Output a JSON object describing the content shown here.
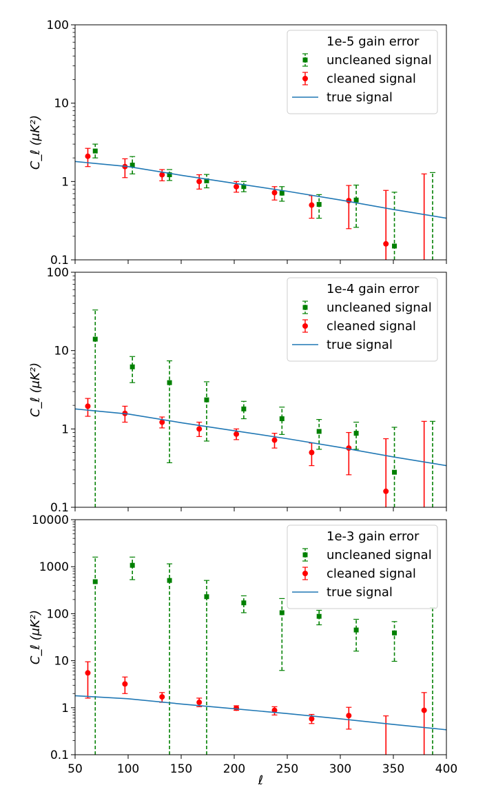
{
  "chart_data": [
    {
      "type": "scatter",
      "panel": "top",
      "ylabel": "C_ℓ (μK²)",
      "yscale": "log",
      "ylim": [
        0.1,
        100
      ],
      "yticks": [
        0.1,
        1,
        10,
        100
      ],
      "ytick_labels": [
        "0.1",
        "1",
        "10",
        "100"
      ],
      "xlim": [
        50,
        400
      ],
      "legend": {
        "placement": "top-right",
        "title": "1e-5 gain error",
        "entries": [
          "uncleaned signal",
          "cleaned signal",
          "true signal"
        ]
      },
      "series": [
        {
          "name": "uncleaned signal",
          "color": "#008000",
          "marker": "square",
          "errorbar_style": "dashed",
          "points": [
            {
              "x": 69,
              "y": 2.45,
              "lo": 2.0,
              "hi": 3.0
            },
            {
              "x": 104,
              "y": 1.62,
              "lo": 1.25,
              "hi": 2.08
            },
            {
              "x": 139,
              "y": 1.22,
              "lo": 1.03,
              "hi": 1.42
            },
            {
              "x": 174,
              "y": 1.02,
              "lo": 0.83,
              "hi": 1.23
            },
            {
              "x": 209,
              "y": 0.86,
              "lo": 0.74,
              "hi": 1.0
            },
            {
              "x": 245,
              "y": 0.71,
              "lo": 0.56,
              "hi": 0.86
            },
            {
              "x": 280,
              "y": 0.51,
              "lo": 0.34,
              "hi": 0.68
            },
            {
              "x": 315,
              "y": 0.58,
              "lo": 0.26,
              "hi": 0.9
            },
            {
              "x": 351,
              "y": 0.15,
              "lo": 0.1,
              "hi": 0.73
            },
            {
              "x": 387,
              "y": null,
              "lo": 0.1,
              "hi": 1.3
            }
          ]
        },
        {
          "name": "cleaned signal",
          "color": "#ff0000",
          "marker": "circle",
          "errorbar_style": "solid",
          "points": [
            {
              "x": 62,
              "y": 2.1,
              "lo": 1.55,
              "hi": 2.65
            },
            {
              "x": 97,
              "y": 1.55,
              "lo": 1.12,
              "hi": 1.95
            },
            {
              "x": 132,
              "y": 1.22,
              "lo": 1.02,
              "hi": 1.42
            },
            {
              "x": 167,
              "y": 1.0,
              "lo": 0.8,
              "hi": 1.22
            },
            {
              "x": 202,
              "y": 0.86,
              "lo": 0.73,
              "hi": 1.0
            },
            {
              "x": 238,
              "y": 0.72,
              "lo": 0.58,
              "hi": 0.86
            },
            {
              "x": 273,
              "y": 0.5,
              "lo": 0.34,
              "hi": 0.66
            },
            {
              "x": 308,
              "y": 0.57,
              "lo": 0.25,
              "hi": 0.89
            },
            {
              "x": 343,
              "y": 0.16,
              "lo": 0.1,
              "hi": 0.77
            },
            {
              "x": 379,
              "y": null,
              "lo": 0.1,
              "hi": 1.25
            }
          ]
        },
        {
          "name": "true signal",
          "color": "#1f77b4",
          "line": true,
          "x": [
            50,
            100,
            150,
            200,
            250,
            300,
            350,
            400
          ],
          "y": [
            1.8,
            1.55,
            1.2,
            0.95,
            0.75,
            0.58,
            0.44,
            0.34
          ]
        }
      ]
    },
    {
      "type": "scatter",
      "panel": "middle",
      "ylabel": "C_ℓ (μK²)",
      "yscale": "log",
      "ylim": [
        0.1,
        100
      ],
      "yticks": [
        0.1,
        1,
        10,
        100
      ],
      "ytick_labels": [
        "0.1",
        "1",
        "10",
        "100"
      ],
      "xlim": [
        50,
        400
      ],
      "legend": {
        "placement": "top-right",
        "title": "1e-4 gain error",
        "entries": [
          "uncleaned signal",
          "cleaned signal",
          "true signal"
        ]
      },
      "series": [
        {
          "name": "uncleaned signal",
          "color": "#008000",
          "marker": "square",
          "errorbar_style": "dashed",
          "points": [
            {
              "x": 69,
              "y": 14,
              "lo": 0.1,
              "hi": 33
            },
            {
              "x": 104,
              "y": 6.2,
              "lo": 3.9,
              "hi": 8.4
            },
            {
              "x": 139,
              "y": 3.9,
              "lo": 0.37,
              "hi": 7.4
            },
            {
              "x": 174,
              "y": 2.35,
              "lo": 0.7,
              "hi": 4.0
            },
            {
              "x": 209,
              "y": 1.8,
              "lo": 1.35,
              "hi": 2.25
            },
            {
              "x": 245,
              "y": 1.35,
              "lo": 0.85,
              "hi": 1.9
            },
            {
              "x": 280,
              "y": 0.93,
              "lo": 0.55,
              "hi": 1.32
            },
            {
              "x": 315,
              "y": 0.88,
              "lo": 0.55,
              "hi": 1.22
            },
            {
              "x": 351,
              "y": 0.28,
              "lo": 0.1,
              "hi": 1.05
            },
            {
              "x": 387,
              "y": null,
              "lo": 0.1,
              "hi": 1.25
            }
          ]
        },
        {
          "name": "cleaned signal",
          "color": "#ff0000",
          "marker": "circle",
          "errorbar_style": "solid",
          "points": [
            {
              "x": 62,
              "y": 1.95,
              "lo": 1.45,
              "hi": 2.45
            },
            {
              "x": 97,
              "y": 1.58,
              "lo": 1.22,
              "hi": 1.95
            },
            {
              "x": 132,
              "y": 1.22,
              "lo": 1.03,
              "hi": 1.42
            },
            {
              "x": 167,
              "y": 1.0,
              "lo": 0.8,
              "hi": 1.22
            },
            {
              "x": 202,
              "y": 0.86,
              "lo": 0.73,
              "hi": 1.0
            },
            {
              "x": 238,
              "y": 0.72,
              "lo": 0.57,
              "hi": 0.88
            },
            {
              "x": 273,
              "y": 0.5,
              "lo": 0.34,
              "hi": 0.66
            },
            {
              "x": 308,
              "y": 0.57,
              "lo": 0.26,
              "hi": 0.9
            },
            {
              "x": 343,
              "y": 0.16,
              "lo": 0.1,
              "hi": 0.75
            },
            {
              "x": 379,
              "y": null,
              "lo": 0.1,
              "hi": 1.25
            }
          ]
        },
        {
          "name": "true signal",
          "color": "#1f77b4",
          "line": true,
          "x": [
            50,
            100,
            150,
            200,
            250,
            300,
            350,
            400
          ],
          "y": [
            1.8,
            1.55,
            1.2,
            0.95,
            0.75,
            0.58,
            0.44,
            0.34
          ]
        }
      ]
    },
    {
      "type": "scatter",
      "panel": "bottom",
      "ylabel": "C_ℓ (μK²)",
      "xlabel": "ℓ",
      "yscale": "log",
      "ylim": [
        0.1,
        10000
      ],
      "yticks": [
        0.1,
        1,
        10,
        100,
        1000,
        10000
      ],
      "ytick_labels": [
        "0.1",
        "1",
        "10",
        "100",
        "1000",
        "10000"
      ],
      "xlim": [
        50,
        400
      ],
      "xticks": [
        50,
        100,
        150,
        200,
        250,
        300,
        350,
        400
      ],
      "xtick_labels": [
        "50",
        "100",
        "150",
        "200",
        "250",
        "300",
        "350",
        "400"
      ],
      "legend": {
        "placement": "top-right",
        "title": "1e-3 gain error",
        "entries": [
          "uncleaned signal",
          "cleaned signal",
          "true signal"
        ]
      },
      "series": [
        {
          "name": "uncleaned signal",
          "color": "#008000",
          "marker": "square",
          "errorbar_style": "dashed",
          "points": [
            {
              "x": 69,
              "y": 480,
              "lo": 0.1,
              "hi": 1600
            },
            {
              "x": 104,
              "y": 1070,
              "lo": 530,
              "hi": 1600
            },
            {
              "x": 139,
              "y": 510,
              "lo": 0.1,
              "hi": 1150
            },
            {
              "x": 174,
              "y": 230,
              "lo": 0.1,
              "hi": 510
            },
            {
              "x": 209,
              "y": 170,
              "lo": 105,
              "hi": 240
            },
            {
              "x": 245,
              "y": 105,
              "lo": 6.2,
              "hi": 210
            },
            {
              "x": 280,
              "y": 88,
              "lo": 58,
              "hi": 118
            },
            {
              "x": 315,
              "y": 45,
              "lo": 16,
              "hi": 76
            },
            {
              "x": 351,
              "y": 39,
              "lo": 9.7,
              "hi": 68
            },
            {
              "x": 387,
              "y": null,
              "lo": 0.1,
              "hi": 135
            }
          ]
        },
        {
          "name": "cleaned signal",
          "color": "#ff0000",
          "marker": "circle",
          "errorbar_style": "solid",
          "points": [
            {
              "x": 62,
              "y": 5.5,
              "lo": 1.6,
              "hi": 9.5
            },
            {
              "x": 97,
              "y": 3.2,
              "lo": 2.0,
              "hi": 4.5
            },
            {
              "x": 132,
              "y": 1.7,
              "lo": 1.3,
              "hi": 2.1
            },
            {
              "x": 167,
              "y": 1.3,
              "lo": 1.05,
              "hi": 1.6
            },
            {
              "x": 202,
              "y": 0.98,
              "lo": 0.88,
              "hi": 1.1
            },
            {
              "x": 238,
              "y": 0.88,
              "lo": 0.7,
              "hi": 1.05
            },
            {
              "x": 273,
              "y": 0.58,
              "lo": 0.46,
              "hi": 0.72
            },
            {
              "x": 308,
              "y": 0.68,
              "lo": 0.35,
              "hi": 1.02
            },
            {
              "x": 343,
              "y": null,
              "lo": 0.1,
              "hi": 0.67
            },
            {
              "x": 379,
              "y": 0.88,
              "lo": 0.1,
              "hi": 2.1
            }
          ]
        },
        {
          "name": "true signal",
          "color": "#1f77b4",
          "line": true,
          "x": [
            50,
            100,
            150,
            200,
            250,
            300,
            350,
            400
          ],
          "y": [
            1.8,
            1.55,
            1.2,
            0.95,
            0.75,
            0.58,
            0.44,
            0.34
          ]
        }
      ]
    }
  ]
}
